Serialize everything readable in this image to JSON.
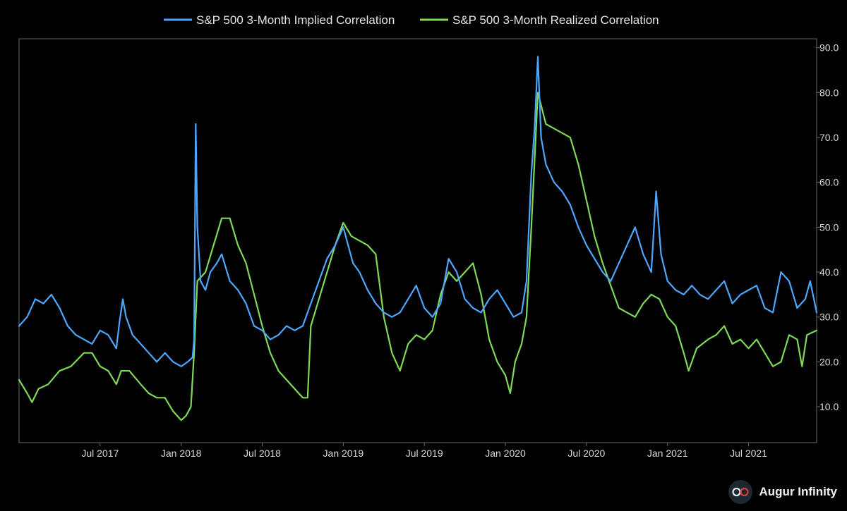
{
  "chart_data": {
    "type": "line",
    "title": "",
    "xlabel": "",
    "ylabel": "",
    "x_range": [
      2017.0,
      2021.92
    ],
    "ylim": [
      2,
      92
    ],
    "yticks": [
      10,
      20,
      30,
      40,
      50,
      60,
      70,
      80,
      90
    ],
    "ytick_labels": [
      "10.0",
      "20.0",
      "30.0",
      "40.0",
      "50.0",
      "60.0",
      "70.0",
      "80.0",
      "90.0"
    ],
    "xticks": [
      {
        "label": "Jul 2017",
        "t": 2017.5
      },
      {
        "label": "Jan 2018",
        "t": 2018.0
      },
      {
        "label": "Jul 2018",
        "t": 2018.5
      },
      {
        "label": "Jan 2019",
        "t": 2019.0
      },
      {
        "label": "Jul 2019",
        "t": 2019.5
      },
      {
        "label": "Jan 2020",
        "t": 2020.0
      },
      {
        "label": "Jul 2020",
        "t": 2020.5
      },
      {
        "label": "Jan 2021",
        "t": 2021.0
      },
      {
        "label": "Jul 2021",
        "t": 2021.5
      }
    ],
    "legend_position": "top-center",
    "series": [
      {
        "name": "S&P 500 3-Month Implied Correlation",
        "color": "#4da6ff",
        "points": [
          [
            2017.0,
            28
          ],
          [
            2017.05,
            30
          ],
          [
            2017.1,
            34
          ],
          [
            2017.15,
            33
          ],
          [
            2017.2,
            35
          ],
          [
            2017.25,
            32
          ],
          [
            2017.3,
            28
          ],
          [
            2017.35,
            26
          ],
          [
            2017.4,
            25
          ],
          [
            2017.45,
            24
          ],
          [
            2017.5,
            27
          ],
          [
            2017.55,
            26
          ],
          [
            2017.6,
            23
          ],
          [
            2017.62,
            29
          ],
          [
            2017.64,
            34
          ],
          [
            2017.66,
            30
          ],
          [
            2017.7,
            26
          ],
          [
            2017.75,
            24
          ],
          [
            2017.8,
            22
          ],
          [
            2017.85,
            20
          ],
          [
            2017.9,
            22
          ],
          [
            2017.95,
            20
          ],
          [
            2018.0,
            19
          ],
          [
            2018.04,
            20
          ],
          [
            2018.07,
            21
          ],
          [
            2018.08,
            25
          ],
          [
            2018.09,
            73
          ],
          [
            2018.1,
            50
          ],
          [
            2018.12,
            38
          ],
          [
            2018.15,
            36
          ],
          [
            2018.18,
            40
          ],
          [
            2018.22,
            42
          ],
          [
            2018.25,
            44
          ],
          [
            2018.3,
            38
          ],
          [
            2018.35,
            36
          ],
          [
            2018.4,
            33
          ],
          [
            2018.45,
            28
          ],
          [
            2018.5,
            27
          ],
          [
            2018.55,
            25
          ],
          [
            2018.6,
            26
          ],
          [
            2018.65,
            28
          ],
          [
            2018.7,
            27
          ],
          [
            2018.75,
            28
          ],
          [
            2018.8,
            33
          ],
          [
            2018.85,
            38
          ],
          [
            2018.9,
            43
          ],
          [
            2018.95,
            46
          ],
          [
            2019.0,
            50
          ],
          [
            2019.03,
            46
          ],
          [
            2019.06,
            42
          ],
          [
            2019.1,
            40
          ],
          [
            2019.15,
            36
          ],
          [
            2019.2,
            33
          ],
          [
            2019.25,
            31
          ],
          [
            2019.3,
            30
          ],
          [
            2019.35,
            31
          ],
          [
            2019.4,
            34
          ],
          [
            2019.45,
            37
          ],
          [
            2019.5,
            32
          ],
          [
            2019.55,
            30
          ],
          [
            2019.6,
            33
          ],
          [
            2019.65,
            43
          ],
          [
            2019.7,
            40
          ],
          [
            2019.75,
            34
          ],
          [
            2019.8,
            32
          ],
          [
            2019.85,
            31
          ],
          [
            2019.9,
            34
          ],
          [
            2019.95,
            36
          ],
          [
            2020.0,
            33
          ],
          [
            2020.05,
            30
          ],
          [
            2020.1,
            31
          ],
          [
            2020.13,
            38
          ],
          [
            2020.16,
            62
          ],
          [
            2020.18,
            72
          ],
          [
            2020.2,
            88
          ],
          [
            2020.22,
            70
          ],
          [
            2020.25,
            64
          ],
          [
            2020.3,
            60
          ],
          [
            2020.35,
            58
          ],
          [
            2020.4,
            55
          ],
          [
            2020.45,
            50
          ],
          [
            2020.5,
            46
          ],
          [
            2020.55,
            43
          ],
          [
            2020.6,
            40
          ],
          [
            2020.65,
            38
          ],
          [
            2020.7,
            42
          ],
          [
            2020.75,
            46
          ],
          [
            2020.8,
            50
          ],
          [
            2020.85,
            44
          ],
          [
            2020.9,
            40
          ],
          [
            2020.93,
            58
          ],
          [
            2020.96,
            44
          ],
          [
            2021.0,
            38
          ],
          [
            2021.05,
            36
          ],
          [
            2021.1,
            35
          ],
          [
            2021.15,
            37
          ],
          [
            2021.2,
            35
          ],
          [
            2021.25,
            34
          ],
          [
            2021.3,
            36
          ],
          [
            2021.35,
            38
          ],
          [
            2021.4,
            33
          ],
          [
            2021.45,
            35
          ],
          [
            2021.5,
            36
          ],
          [
            2021.55,
            37
          ],
          [
            2021.6,
            32
          ],
          [
            2021.65,
            31
          ],
          [
            2021.7,
            40
          ],
          [
            2021.75,
            38
          ],
          [
            2021.8,
            32
          ],
          [
            2021.85,
            34
          ],
          [
            2021.88,
            38
          ],
          [
            2021.92,
            31
          ]
        ]
      },
      {
        "name": "S&P 500 3-Month Realized Correlation",
        "color": "#7ed957",
        "points": [
          [
            2017.0,
            16
          ],
          [
            2017.05,
            13
          ],
          [
            2017.08,
            11
          ],
          [
            2017.12,
            14
          ],
          [
            2017.18,
            15
          ],
          [
            2017.25,
            18
          ],
          [
            2017.32,
            19
          ],
          [
            2017.4,
            22
          ],
          [
            2017.45,
            22
          ],
          [
            2017.5,
            19
          ],
          [
            2017.55,
            18
          ],
          [
            2017.6,
            15
          ],
          [
            2017.63,
            18
          ],
          [
            2017.68,
            18
          ],
          [
            2017.75,
            15
          ],
          [
            2017.8,
            13
          ],
          [
            2017.85,
            12
          ],
          [
            2017.9,
            12
          ],
          [
            2017.95,
            9
          ],
          [
            2018.0,
            7
          ],
          [
            2018.03,
            8
          ],
          [
            2018.06,
            10
          ],
          [
            2018.08,
            22
          ],
          [
            2018.1,
            38
          ],
          [
            2018.15,
            40
          ],
          [
            2018.2,
            46
          ],
          [
            2018.25,
            52
          ],
          [
            2018.3,
            52
          ],
          [
            2018.35,
            46
          ],
          [
            2018.4,
            42
          ],
          [
            2018.45,
            35
          ],
          [
            2018.5,
            28
          ],
          [
            2018.55,
            22
          ],
          [
            2018.6,
            18
          ],
          [
            2018.65,
            16
          ],
          [
            2018.7,
            14
          ],
          [
            2018.75,
            12
          ],
          [
            2018.78,
            12
          ],
          [
            2018.8,
            28
          ],
          [
            2018.85,
            34
          ],
          [
            2018.9,
            40
          ],
          [
            2018.95,
            46
          ],
          [
            2019.0,
            51
          ],
          [
            2019.05,
            48
          ],
          [
            2019.1,
            47
          ],
          [
            2019.15,
            46
          ],
          [
            2019.2,
            44
          ],
          [
            2019.25,
            30
          ],
          [
            2019.3,
            22
          ],
          [
            2019.35,
            18
          ],
          [
            2019.4,
            24
          ],
          [
            2019.45,
            26
          ],
          [
            2019.5,
            25
          ],
          [
            2019.55,
            27
          ],
          [
            2019.6,
            35
          ],
          [
            2019.65,
            40
          ],
          [
            2019.7,
            38
          ],
          [
            2019.75,
            40
          ],
          [
            2019.8,
            42
          ],
          [
            2019.85,
            35
          ],
          [
            2019.9,
            25
          ],
          [
            2019.95,
            20
          ],
          [
            2020.0,
            17
          ],
          [
            2020.03,
            13
          ],
          [
            2020.06,
            20
          ],
          [
            2020.1,
            24
          ],
          [
            2020.13,
            30
          ],
          [
            2020.16,
            50
          ],
          [
            2020.18,
            65
          ],
          [
            2020.2,
            80
          ],
          [
            2020.25,
            73
          ],
          [
            2020.3,
            72
          ],
          [
            2020.35,
            71
          ],
          [
            2020.4,
            70
          ],
          [
            2020.45,
            64
          ],
          [
            2020.5,
            56
          ],
          [
            2020.55,
            48
          ],
          [
            2020.6,
            42
          ],
          [
            2020.65,
            37
          ],
          [
            2020.7,
            32
          ],
          [
            2020.75,
            31
          ],
          [
            2020.8,
            30
          ],
          [
            2020.85,
            33
          ],
          [
            2020.9,
            35
          ],
          [
            2020.95,
            34
          ],
          [
            2021.0,
            30
          ],
          [
            2021.05,
            28
          ],
          [
            2021.1,
            22
          ],
          [
            2021.13,
            18
          ],
          [
            2021.18,
            23
          ],
          [
            2021.25,
            25
          ],
          [
            2021.3,
            26
          ],
          [
            2021.35,
            28
          ],
          [
            2021.4,
            24
          ],
          [
            2021.45,
            25
          ],
          [
            2021.5,
            23
          ],
          [
            2021.55,
            25
          ],
          [
            2021.6,
            22
          ],
          [
            2021.65,
            19
          ],
          [
            2021.7,
            20
          ],
          [
            2021.75,
            26
          ],
          [
            2021.8,
            25
          ],
          [
            2021.83,
            19
          ],
          [
            2021.86,
            26
          ],
          [
            2021.92,
            27
          ]
        ]
      }
    ]
  },
  "brand": {
    "name": "Augur Infinity",
    "logo_icon": "infinity-icon",
    "logo_colors": [
      "#e8eaf0",
      "#e03a2f"
    ]
  }
}
